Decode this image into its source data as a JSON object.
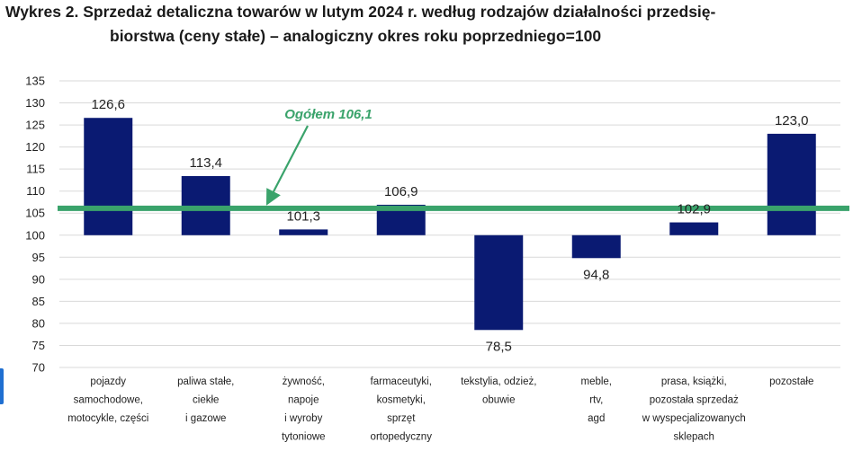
{
  "chart_data": {
    "type": "bar",
    "title_line1": "Wykres 2. Sprzedaż detaliczna towarów w lutym 2024 r. według rodzajów działalności przedsię-",
    "title_line2": "biorstwa (ceny stałe) – analogiczny okres roku poprzedniego=100",
    "categories": [
      [
        "pojazdy",
        "samochodowe,",
        "motocykle,  części"
      ],
      [
        "paliwa stałe,",
        "ciekłe",
        "i gazowe"
      ],
      [
        "żywność,",
        "napoje",
        "i wyroby",
        "tytoniowe"
      ],
      [
        "farmaceutyki,",
        "kosmetyki,",
        "sprzęt",
        "ortopedyczny"
      ],
      [
        "tekstylia, odzież,",
        "obuwie"
      ],
      [
        "meble,",
        "rtv,",
        "agd"
      ],
      [
        "prasa, książki,",
        "pozostała sprzedaż",
        "w wyspecjalizowanych",
        "sklepach"
      ],
      [
        "pozostałe"
      ]
    ],
    "values": [
      126.6,
      113.4,
      101.3,
      106.9,
      78.5,
      94.8,
      102.9,
      123.0
    ],
    "value_labels": [
      "126,6",
      "113,4",
      "101,3",
      "106,9",
      "78,5",
      "94,8",
      "102,9",
      "123,0"
    ],
    "baseline": 100,
    "ylim": [
      70,
      135
    ],
    "yticks": [
      70,
      75,
      80,
      85,
      90,
      95,
      100,
      105,
      110,
      115,
      120,
      125,
      130,
      135
    ],
    "grid": true,
    "reference_line": {
      "value": 106.1,
      "label": "Ogółem 106,1"
    },
    "colors": {
      "bar": "#0a1a72",
      "reference": "#3aa36b",
      "grid": "#d9d9d9"
    }
  }
}
